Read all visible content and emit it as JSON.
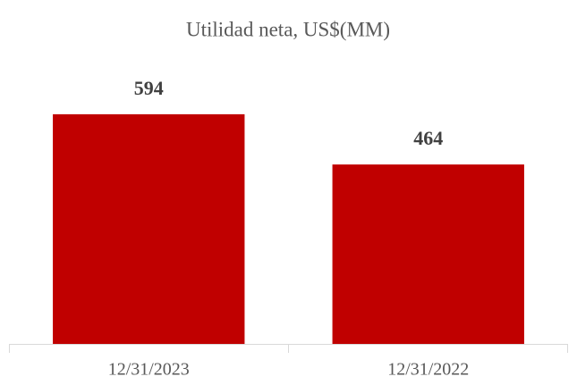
{
  "chart_data": {
    "type": "bar",
    "title": "Utilidad neta, US$(MM)",
    "categories": [
      "12/31/2023",
      "12/31/2022"
    ],
    "values": [
      594,
      464
    ],
    "color": "#c00000",
    "ylim": [
      0,
      700
    ]
  }
}
